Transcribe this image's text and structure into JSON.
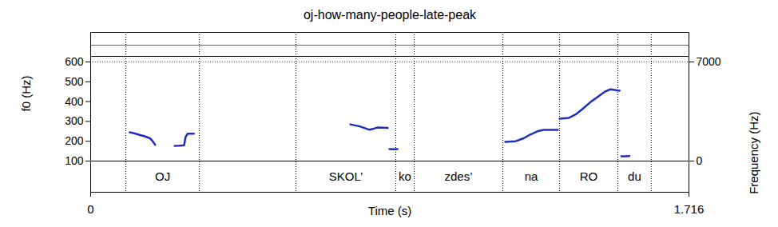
{
  "chart_data": {
    "type": "line",
    "title": "oj-how-many-people-late-peak",
    "x_label": "Time (s)",
    "y_label": "f0 (Hz)",
    "y2_label": "Frequency (Hz)",
    "xlim": [
      0,
      1.716
    ],
    "xticks": [
      0,
      1.716
    ],
    "ylim": [
      100,
      600
    ],
    "yticks": [
      100,
      200,
      300,
      400,
      500,
      600
    ],
    "y2lim": [
      0,
      7000
    ],
    "y2ticks": [
      0,
      7000
    ],
    "series": [
      {
        "color": "#1f2ec2",
        "x": [
          0.112,
          0.125,
          0.14,
          0.155,
          0.17,
          0.178,
          0.185
        ],
        "values": [
          245,
          240,
          232,
          225,
          215,
          200,
          182
        ]
      },
      {
        "color": "#1f2ec2",
        "x": [
          0.241,
          0.255,
          0.268,
          0.272,
          0.278,
          0.296
        ],
        "values": [
          177,
          178,
          180,
          220,
          238,
          238
        ]
      },
      {
        "color": "#1f2ec2",
        "x": [
          0.745,
          0.772,
          0.8,
          0.809,
          0.822,
          0.852
        ],
        "values": [
          285,
          275,
          258,
          262,
          269,
          267
        ]
      },
      {
        "color": "#1f2ec2",
        "x": [
          0.857,
          0.868,
          0.88
        ],
        "values": [
          160,
          159,
          160
        ]
      },
      {
        "color": "#1f2ec2",
        "x": [
          1.189,
          1.219,
          1.242,
          1.26,
          1.281,
          1.299,
          1.34
        ],
        "values": [
          197,
          200,
          215,
          233,
          250,
          257,
          257
        ]
      },
      {
        "color": "#1f2ec2",
        "x": [
          1.345,
          1.372,
          1.391,
          1.409,
          1.432,
          1.455,
          1.475,
          1.491,
          1.505,
          1.517
        ],
        "values": [
          314,
          318,
          335,
          360,
          395,
          425,
          450,
          462,
          458,
          455
        ]
      },
      {
        "color": "#1f2ec2",
        "x": [
          1.522,
          1.532,
          1.545
        ],
        "values": [
          124,
          124,
          125
        ]
      }
    ],
    "intervals": [
      {
        "start": 0.101,
        "end": 0.312,
        "label": "OJ"
      },
      {
        "start": 0.589,
        "end": 0.875,
        "label": "SKOL’"
      },
      {
        "start": 0.875,
        "end": 0.928,
        "label": "ko"
      },
      {
        "start": 0.928,
        "end": 1.182,
        "label": "zdes’"
      },
      {
        "start": 1.182,
        "end": 1.345,
        "label": "na"
      },
      {
        "start": 1.345,
        "end": 1.512,
        "label": "RO"
      },
      {
        "start": 1.512,
        "end": 1.608,
        "label": "du"
      }
    ]
  }
}
